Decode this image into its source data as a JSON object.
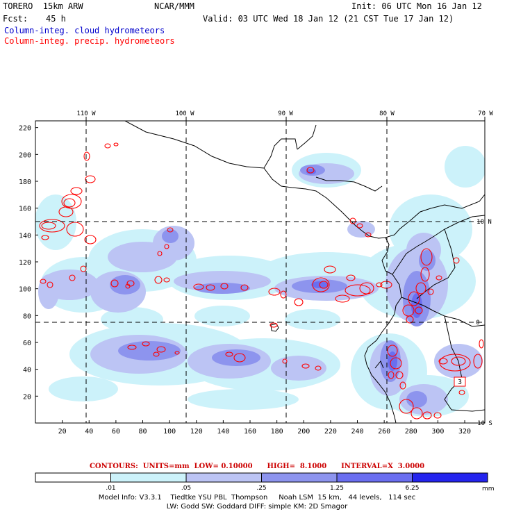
{
  "header": {
    "model": "TORERO  15km ARW",
    "center": "NCAR/MMM",
    "init": "Init: 06 UTC Mon 16 Jan 12",
    "fcst_label": "Fcst:",
    "fcst_value": "45 h",
    "valid": "Valid: 03 UTC Wed 18 Jan 12 (21 CST Tue 17 Jan 12)"
  },
  "legend": {
    "cloud": "Column-integ. cloud hydrometeors",
    "precip": "Column-integ. precip. hydrometeors",
    "cloud_color": "#0000cc",
    "precip_color": "#ff0000"
  },
  "map": {
    "lon_labels": [
      "110 W",
      "100 W",
      "90 W",
      "80 W",
      "70 W"
    ],
    "lat_labels": [
      "10 N",
      "0",
      "10 S"
    ],
    "x_ticks": [
      "20",
      "40",
      "60",
      "80",
      "100",
      "120",
      "140",
      "160",
      "180",
      "200",
      "220",
      "240",
      "260",
      "280",
      "300",
      "320"
    ],
    "y_ticks": [
      "20",
      "40",
      "60",
      "80",
      "100",
      "120",
      "140",
      "160",
      "180",
      "200",
      "220"
    ],
    "contour_value_label": "3"
  },
  "contours_line": "CONTOURS:  UNITS=mm  LOW= 0.10000      HIGH=  8.1000      INTERVAL=X  3.0000",
  "colorbar": {
    "unit": "mm",
    "tick_labels": [
      ".01",
      ".05",
      ".25",
      "1.25",
      "6.25"
    ],
    "colors": [
      "#ffffff",
      "#ccf2fa",
      "#bcc4f4",
      "#8d94ee",
      "#6a6ef0",
      "#2424ee"
    ]
  },
  "footer": {
    "line1": "Model Info: V3.3.1    Tiedtke YSU PBL  Thompson     Noah LSM  15 km,   44 levels,   114 sec",
    "line2": "LW: Godd SW: Goddard DIFF: simple KM: 2D Smagor"
  }
}
